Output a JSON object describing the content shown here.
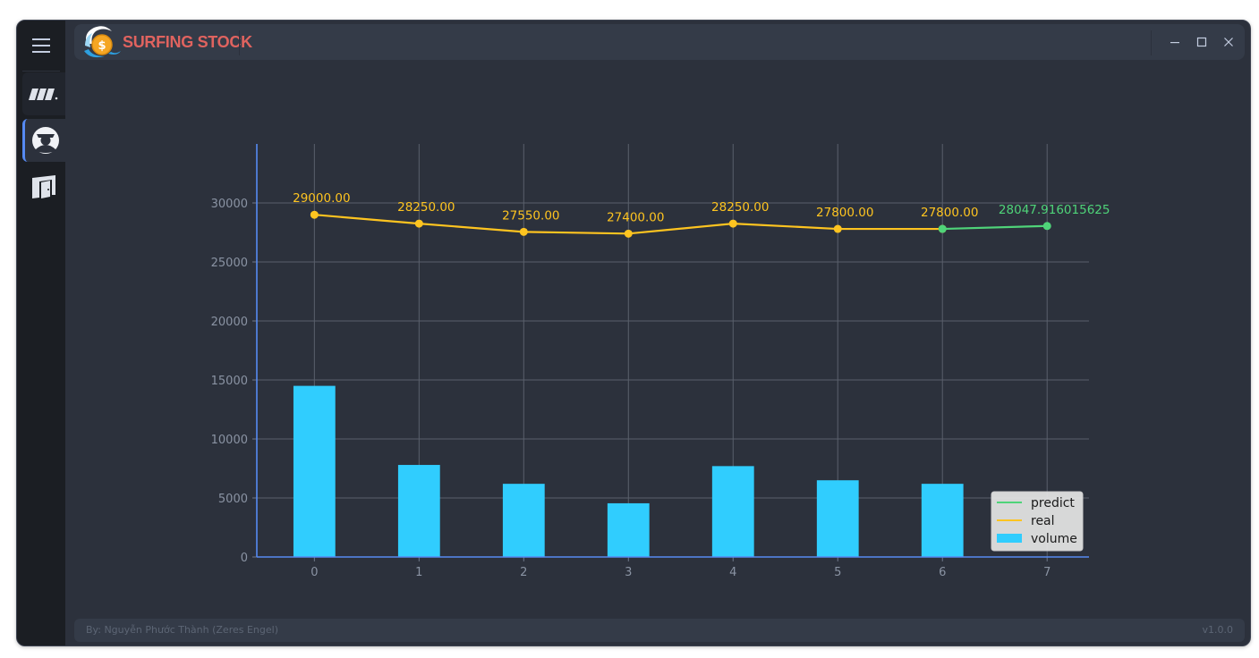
{
  "app": {
    "title": "SURFING STOCK",
    "accent": "#568af2",
    "logo_color": "#e0635f"
  },
  "sidebar": {
    "items": [
      {
        "icon": "menu-icon"
      },
      {
        "icon": "stock-logo-icon"
      },
      {
        "icon": "user-icon"
      },
      {
        "icon": "exit-door-icon"
      }
    ]
  },
  "window_controls": {
    "minimize": "–",
    "maximize": "□",
    "close": "✕"
  },
  "footer": {
    "credits": "By: Nguyễn Phước Thành (Zeres Engel)",
    "version": "v1.0.0"
  },
  "chart_data": {
    "type": "bar",
    "categories": [
      "0",
      "1",
      "2",
      "3",
      "4",
      "5",
      "6",
      "7"
    ],
    "x_ticks": [
      "0",
      "1",
      "2",
      "3",
      "4",
      "5",
      "6",
      "7"
    ],
    "y_ticks": [
      "0",
      "5000",
      "10000",
      "15000",
      "20000",
      "25000",
      "30000"
    ],
    "ylim": [
      0,
      35000
    ],
    "xlim": [
      -0.55,
      7.4
    ],
    "grid": true,
    "series": [
      {
        "name": "volume",
        "type": "bar",
        "color": "#30cdfe",
        "x": [
          0,
          1,
          2,
          3,
          4,
          5,
          6
        ],
        "values": [
          14500,
          7800,
          6200,
          4550,
          7700,
          6500,
          6200
        ]
      },
      {
        "name": "real",
        "type": "line",
        "color": "#fec420",
        "x": [
          0,
          1,
          2,
          3,
          4,
          5,
          6
        ],
        "values": [
          29000,
          28250,
          27550,
          27400,
          28250,
          27800,
          27800
        ],
        "labels": [
          "29000.00",
          "28250.00",
          "27550.00",
          "27400.00",
          "28250.00",
          "27800.00",
          "27800.00"
        ]
      },
      {
        "name": "predict",
        "type": "line",
        "color": "#4fd479",
        "x": [
          6,
          7
        ],
        "values": [
          27800,
          28047.916015625
        ],
        "labels": [
          "",
          "28047.916015625"
        ]
      }
    ],
    "legend": {
      "position": "bottom-right",
      "entries": [
        "predict",
        "real",
        "volume"
      ]
    }
  }
}
